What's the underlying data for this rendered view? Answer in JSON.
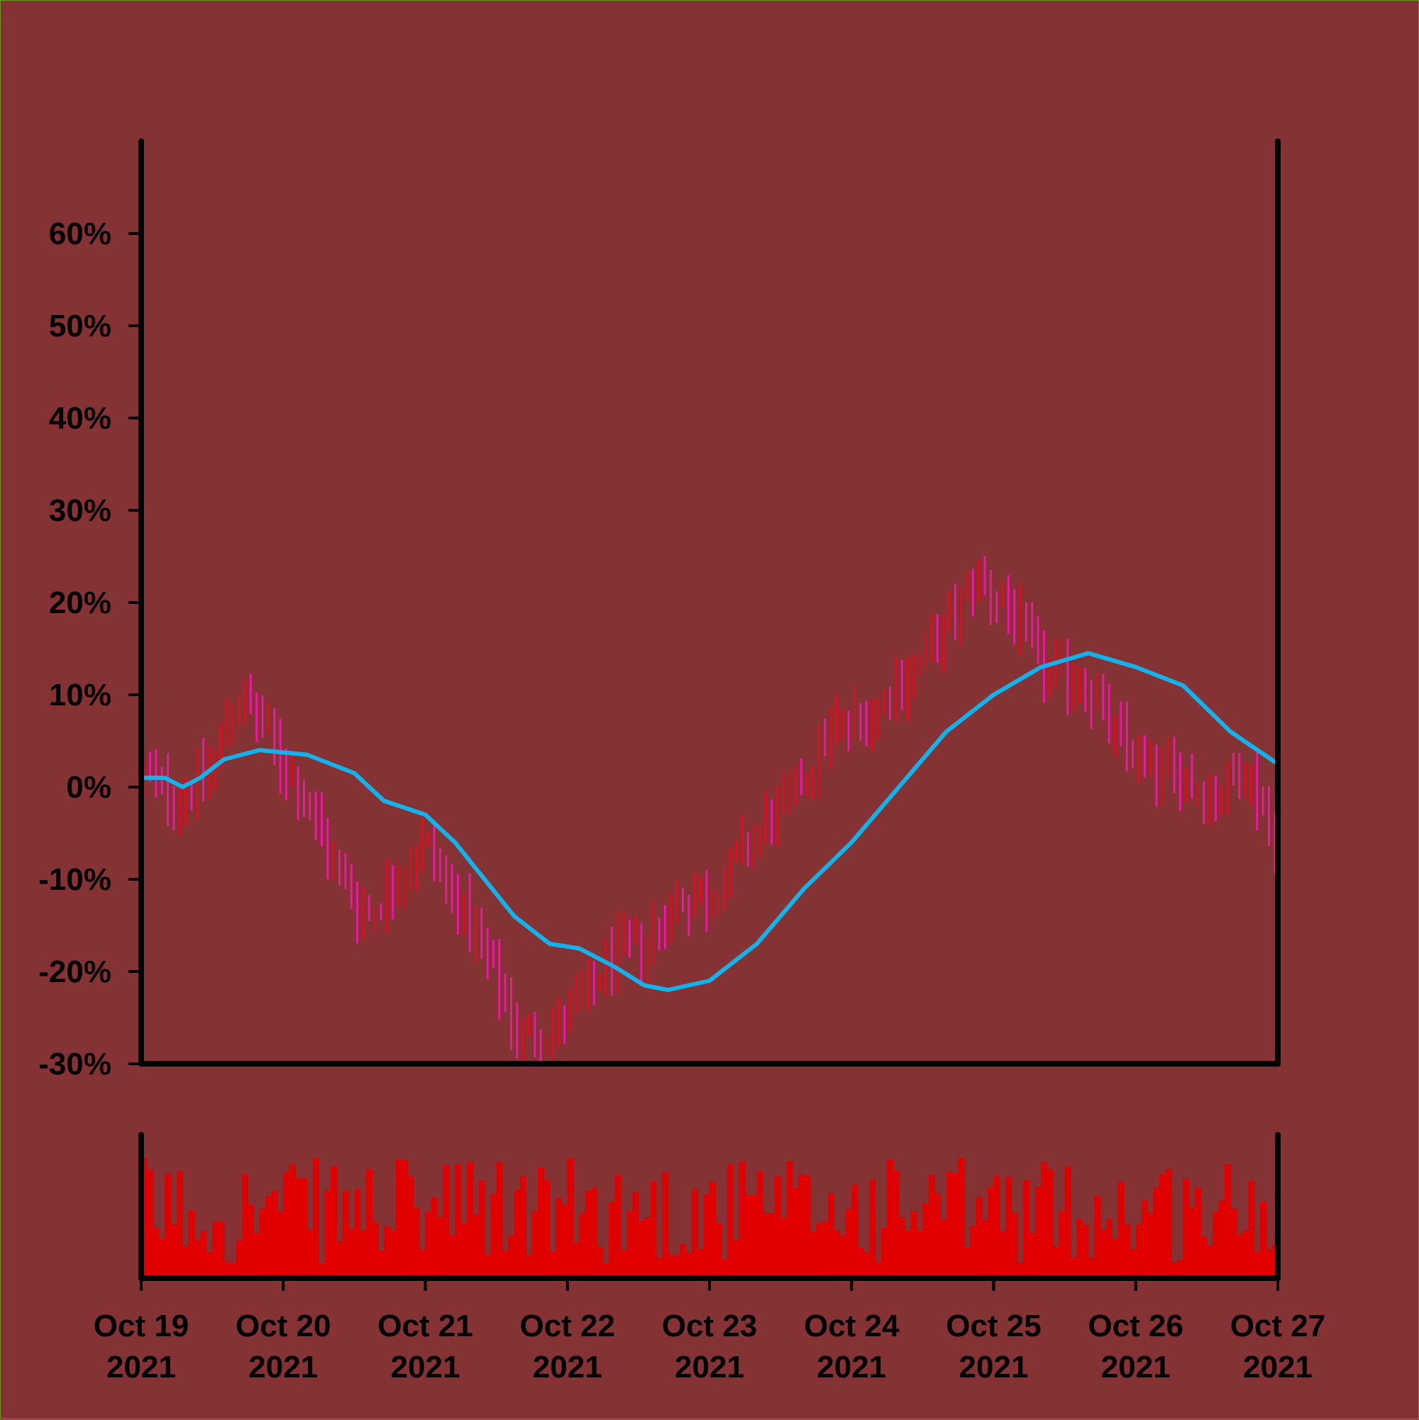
{
  "chart_data": {
    "type": "ohlc",
    "title": "",
    "xlabel": "",
    "ylabel": "",
    "ylim": [
      -30,
      70
    ],
    "y_ticks": [
      60,
      50,
      40,
      30,
      20,
      10,
      0,
      -10,
      -20,
      -30
    ],
    "y_tick_labels": [
      "60%",
      "50%",
      "40%",
      "30%",
      "20%",
      "10%",
      "0%",
      "-10%",
      "-20%",
      "-30%"
    ],
    "x_ticks": [
      {
        "date": "2021-10-19",
        "line1": "Oct 19",
        "line2": "2021"
      },
      {
        "date": "2021-10-20",
        "line1": "Oct 20",
        "line2": "2021"
      },
      {
        "date": "2021-10-21",
        "line1": "Oct 21",
        "line2": "2021"
      },
      {
        "date": "2021-10-22",
        "line1": "Oct 22",
        "line2": "2021"
      },
      {
        "date": "2021-10-23",
        "line1": "Oct 23",
        "line2": "2021"
      },
      {
        "date": "2021-10-24",
        "line1": "Oct 24",
        "line2": "2021"
      },
      {
        "date": "2021-10-25",
        "line1": "Oct 25",
        "line2": "2021"
      },
      {
        "date": "2021-10-26",
        "line1": "Oct 26",
        "line2": "2021"
      },
      {
        "date": "2021-10-27",
        "line1": "Oct 27",
        "line2": "2021"
      }
    ],
    "x_range": [
      "2021-10-19T00:00",
      "2021-10-27T00:00"
    ],
    "bar_interval_hours": 1,
    "price_anchor_points": [
      {
        "t": "2021-10-19T01:00",
        "v": 1
      },
      {
        "t": "2021-10-19T06:00",
        "v": -1
      },
      {
        "t": "2021-10-19T12:00",
        "v": 2
      },
      {
        "t": "2021-10-19T16:00",
        "v": 10
      },
      {
        "t": "2021-10-19T21:00",
        "v": 6
      },
      {
        "t": "2021-10-20T04:00",
        "v": -2
      },
      {
        "t": "2021-10-20T09:00",
        "v": -9
      },
      {
        "t": "2021-10-20T14:00",
        "v": -14
      },
      {
        "t": "2021-10-20T19:00",
        "v": -10
      },
      {
        "t": "2021-10-21T00:00",
        "v": -6
      },
      {
        "t": "2021-10-21T05:00",
        "v": -12
      },
      {
        "t": "2021-10-21T11:00",
        "v": -20
      },
      {
        "t": "2021-10-21T16:00",
        "v": -27
      },
      {
        "t": "2021-10-21T22:00",
        "v": -26
      },
      {
        "t": "2021-10-22T03:00",
        "v": -23
      },
      {
        "t": "2021-10-22T08:00",
        "v": -18
      },
      {
        "t": "2021-10-22T13:00",
        "v": -17
      },
      {
        "t": "2021-10-22T19:00",
        "v": -12
      },
      {
        "t": "2021-10-23T00:00",
        "v": -12
      },
      {
        "t": "2021-10-23T07:00",
        "v": -6
      },
      {
        "t": "2021-10-23T14:00",
        "v": -1
      },
      {
        "t": "2021-10-23T20:00",
        "v": 6
      },
      {
        "t": "2021-10-24T03:00",
        "v": 8
      },
      {
        "t": "2021-10-24T09:00",
        "v": 12
      },
      {
        "t": "2021-10-24T15:00",
        "v": 16
      },
      {
        "t": "2021-10-24T21:00",
        "v": 23
      },
      {
        "t": "2021-10-25T03:00",
        "v": 19
      },
      {
        "t": "2021-10-25T09:00",
        "v": 12
      },
      {
        "t": "2021-10-25T15:00",
        "v": 12
      },
      {
        "t": "2021-10-25T21:00",
        "v": 5
      },
      {
        "t": "2021-10-26T03:00",
        "v": 2
      },
      {
        "t": "2021-10-26T08:00",
        "v": 1
      },
      {
        "t": "2021-10-26T13:00",
        "v": -1
      },
      {
        "t": "2021-10-26T19:00",
        "v": 2
      },
      {
        "t": "2021-10-26T23:00",
        "v": -5
      }
    ],
    "moving_average_points": [
      {
        "t": "2021-10-19T00:00",
        "v": 1
      },
      {
        "t": "2021-10-19T04:00",
        "v": 1
      },
      {
        "t": "2021-10-19T07:00",
        "v": 0
      },
      {
        "t": "2021-10-19T10:00",
        "v": 1
      },
      {
        "t": "2021-10-19T14:00",
        "v": 3
      },
      {
        "t": "2021-10-19T20:00",
        "v": 4
      },
      {
        "t": "2021-10-20T04:00",
        "v": 3.5
      },
      {
        "t": "2021-10-20T08:00",
        "v": 2.5
      },
      {
        "t": "2021-10-20T12:00",
        "v": 1.5
      },
      {
        "t": "2021-10-20T17:00",
        "v": -1.5
      },
      {
        "t": "2021-10-21T00:00",
        "v": -3
      },
      {
        "t": "2021-10-21T05:00",
        "v": -6
      },
      {
        "t": "2021-10-21T10:00",
        "v": -10
      },
      {
        "t": "2021-10-21T15:00",
        "v": -14
      },
      {
        "t": "2021-10-21T21:00",
        "v": -17
      },
      {
        "t": "2021-10-22T02:00",
        "v": -17.5
      },
      {
        "t": "2021-10-22T08:00",
        "v": -19.5
      },
      {
        "t": "2021-10-22T13:00",
        "v": -21.5
      },
      {
        "t": "2021-10-22T17:00",
        "v": -22
      },
      {
        "t": "2021-10-23T00:00",
        "v": -21
      },
      {
        "t": "2021-10-23T08:00",
        "v": -17
      },
      {
        "t": "2021-10-23T16:00",
        "v": -11
      },
      {
        "t": "2021-10-24T00:00",
        "v": -6
      },
      {
        "t": "2021-10-24T08:00",
        "v": 0
      },
      {
        "t": "2021-10-24T16:00",
        "v": 6
      },
      {
        "t": "2021-10-25T00:00",
        "v": 10
      },
      {
        "t": "2021-10-25T08:00",
        "v": 13
      },
      {
        "t": "2021-10-25T16:00",
        "v": 14.5
      },
      {
        "t": "2021-10-26T00:00",
        "v": 13
      },
      {
        "t": "2021-10-26T08:00",
        "v": 11
      },
      {
        "t": "2021-10-26T16:00",
        "v": 6
      },
      {
        "t": "2021-10-27T00:00",
        "v": 2.5
      }
    ],
    "colors": {
      "background": "#853235",
      "outer_border": "#6a9a24",
      "axis": "#000000",
      "bar_up": "#dd0d1f",
      "bar_down": "#e81a9f",
      "moving_average": "#12b2ea",
      "volume": "#e00000"
    },
    "volume_panel": {
      "shown": true,
      "y_labels": false
    },
    "grid": false,
    "legend": "none"
  }
}
